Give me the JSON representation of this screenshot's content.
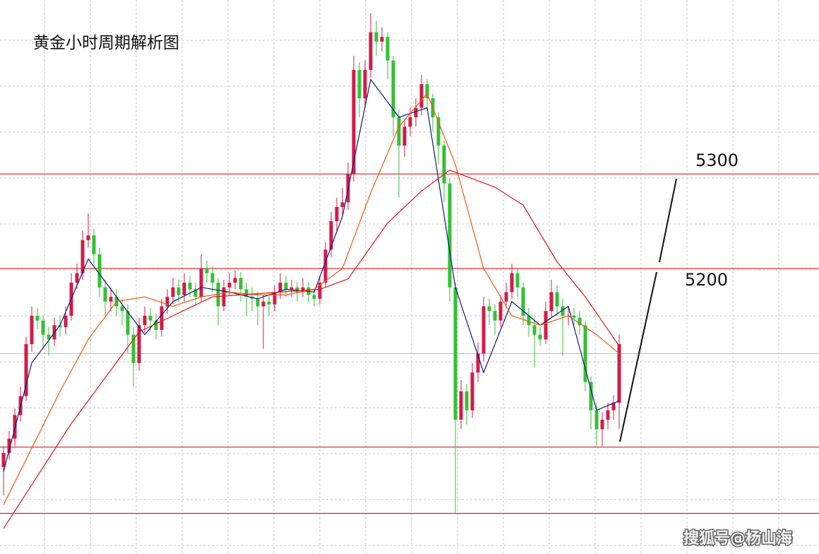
{
  "chart_data": {
    "type": "candlestick",
    "title": "黄金小时周期解析图",
    "watermark": "搜狐号@杨山海",
    "ylim": [
      4898,
      5484
    ],
    "grid": true,
    "up_color": "#d01c48",
    "down_color": "#35c035",
    "level_color": "#d82020",
    "levels": [
      5300,
      5200
    ],
    "level_lines": [
      5011,
      4941
    ],
    "price_line": 5110,
    "open": [
      4990,
      5005,
      5020,
      5045,
      5065,
      5120,
      5150,
      5145,
      5130,
      5125,
      5140,
      5138,
      5150,
      5185,
      5195,
      5230,
      5235,
      5215,
      5180,
      5165,
      5170,
      5160,
      5155,
      5130,
      5100,
      5140,
      5150,
      5145,
      5135,
      5160,
      5170,
      5180,
      5172,
      5185,
      5178,
      5170,
      5200,
      5195,
      5185,
      5160,
      5180,
      5185,
      5190,
      5178,
      5170,
      5168,
      5160,
      5165,
      5162,
      5175,
      5185,
      5178,
      5180,
      5175,
      5180,
      5172,
      5168,
      5185,
      5220,
      5250,
      5265,
      5270,
      5300,
      5410,
      5380,
      5410,
      5450,
      5440,
      5445,
      5420,
      5360,
      5330,
      5350,
      5360,
      5370,
      5395,
      5380,
      5360,
      5330,
      5290,
      5180,
      5040,
      5070,
      5050,
      5090,
      5110,
      5160,
      5155,
      5145,
      5165,
      5175,
      5195,
      5180,
      5150,
      5140,
      5130,
      5125,
      5155,
      5175,
      5160,
      5150,
      5150,
      5148,
      5140,
      5080,
      5050,
      5030,
      5040,
      5050,
      5058
    ],
    "high": [
      5012,
      5028,
      5052,
      5075,
      5128,
      5160,
      5158,
      5150,
      5138,
      5148,
      5150,
      5160,
      5195,
      5205,
      5240,
      5258,
      5242,
      5222,
      5188,
      5180,
      5178,
      5168,
      5162,
      5138,
      5148,
      5160,
      5158,
      5152,
      5168,
      5178,
      5190,
      5188,
      5195,
      5192,
      5185,
      5215,
      5208,
      5202,
      5190,
      5188,
      5195,
      5198,
      5196,
      5185,
      5180,
      5175,
      5172,
      5175,
      5182,
      5195,
      5192,
      5188,
      5186,
      5190,
      5186,
      5178,
      5192,
      5228,
      5260,
      5275,
      5285,
      5312,
      5425,
      5418,
      5420,
      5470,
      5462,
      5455,
      5450,
      5425,
      5368,
      5358,
      5370,
      5380,
      5405,
      5400,
      5385,
      5365,
      5335,
      5295,
      5185,
      5082,
      5078,
      5100,
      5122,
      5170,
      5168,
      5162,
      5172,
      5185,
      5205,
      5200,
      5185,
      5158,
      5148,
      5138,
      5165,
      5188,
      5182,
      5168,
      5160,
      5158,
      5155,
      5145,
      5086,
      5058,
      5048,
      5058,
      5066,
      5130
    ],
    "low": [
      4960,
      4998,
      5012,
      5038,
      5060,
      5112,
      5136,
      5115,
      5108,
      5118,
      5128,
      5130,
      5145,
      5178,
      5188,
      5222,
      5205,
      5170,
      5150,
      5155,
      5150,
      5140,
      5110,
      5075,
      5092,
      5132,
      5135,
      5125,
      5128,
      5152,
      5162,
      5165,
      5165,
      5170,
      5160,
      5165,
      5185,
      5175,
      5140,
      5155,
      5172,
      5178,
      5165,
      5150,
      5155,
      5140,
      5115,
      5150,
      5155,
      5168,
      5170,
      5170,
      5165,
      5170,
      5164,
      5160,
      5162,
      5180,
      5212,
      5240,
      5255,
      5262,
      5292,
      5360,
      5372,
      5402,
      5425,
      5430,
      5400,
      5340,
      5275,
      5318,
      5340,
      5350,
      5362,
      5370,
      5345,
      5310,
      5270,
      5165,
      4942,
      5030,
      5035,
      5042,
      5080,
      5102,
      5140,
      5130,
      5138,
      5158,
      5168,
      5170,
      5140,
      5128,
      5095,
      5118,
      5120,
      5148,
      5150,
      5108,
      5140,
      5140,
      5130,
      5070,
      5030,
      5012,
      5012,
      5030,
      5040,
      5030
    ],
    "close": [
      5005,
      5020,
      5045,
      5065,
      5120,
      5150,
      5145,
      5130,
      5125,
      5140,
      5138,
      5150,
      5185,
      5195,
      5230,
      5235,
      5215,
      5180,
      5165,
      5170,
      5160,
      5155,
      5130,
      5100,
      5140,
      5150,
      5145,
      5135,
      5160,
      5170,
      5180,
      5172,
      5185,
      5178,
      5170,
      5200,
      5195,
      5185,
      5160,
      5180,
      5185,
      5190,
      5178,
      5170,
      5168,
      5160,
      5165,
      5162,
      5175,
      5185,
      5178,
      5180,
      5175,
      5180,
      5172,
      5168,
      5185,
      5220,
      5250,
      5265,
      5270,
      5300,
      5410,
      5380,
      5410,
      5450,
      5440,
      5445,
      5420,
      5360,
      5330,
      5350,
      5360,
      5370,
      5395,
      5380,
      5360,
      5330,
      5290,
      5180,
      5040,
      5070,
      5050,
      5090,
      5110,
      5160,
      5155,
      5145,
      5165,
      5175,
      5195,
      5180,
      5150,
      5140,
      5130,
      5125,
      5155,
      5175,
      5160,
      5150,
      5150,
      5148,
      5140,
      5080,
      5050,
      5030,
      5040,
      5050,
      5058,
      5120
    ],
    "moving_averages": [
      {
        "color": "#101880",
        "x": [
          0,
          5,
          10,
          15,
          20,
          25,
          30,
          35,
          40,
          45,
          50,
          55,
          60,
          65,
          70,
          75,
          80,
          85,
          90,
          95,
          100,
          105,
          109
        ],
        "values": [
          4985,
          5100,
          5140,
          5210,
          5170,
          5130,
          5165,
          5180,
          5175,
          5168,
          5178,
          5175,
          5255,
          5400,
          5360,
          5370,
          5180,
          5090,
          5165,
          5140,
          5160,
          5050,
          5060
        ]
      },
      {
        "color": "#f05a10",
        "x": [
          0,
          5,
          10,
          15,
          20,
          25,
          30,
          35,
          40,
          45,
          50,
          55,
          60,
          65,
          70,
          75,
          80,
          85,
          90,
          95,
          100,
          105,
          109
        ],
        "values": [
          4950,
          5010,
          5070,
          5125,
          5165,
          5170,
          5160,
          5170,
          5175,
          5172,
          5172,
          5178,
          5200,
          5280,
          5350,
          5385,
          5310,
          5200,
          5150,
          5140,
          5150,
          5130,
          5110
        ]
      },
      {
        "color": "#e01818",
        "x": [
          0,
          12,
          24,
          37,
          56,
          61,
          68,
          74,
          79,
          87,
          92,
          98,
          103,
          109
        ],
        "values": [
          4925,
          5036,
          5133,
          5170,
          5178,
          5189,
          5248,
          5282,
          5304,
          5286,
          5267,
          5207,
          5170,
          5118
        ]
      }
    ]
  }
}
